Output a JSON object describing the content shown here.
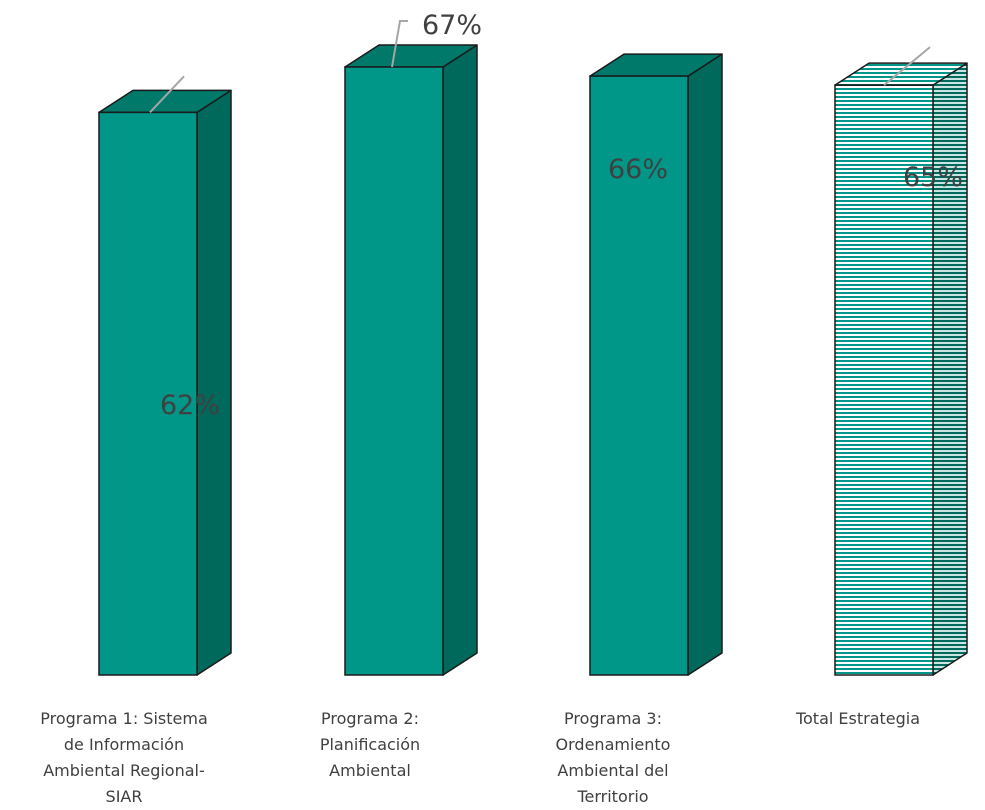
{
  "chart_data": {
    "type": "bar",
    "categories": [
      "Programa 1: Sistema de Información Ambiental Regional-SIAR",
      "Programa 2: Planificación Ambiental",
      "Programa 3: Ordenamiento Ambiental del Territorio",
      "Total Estrategia"
    ],
    "category_lines": [
      [
        "Programa 1: Sistema",
        "de Información",
        "Ambiental Regional-",
        "SIAR"
      ],
      [
        "Programa 2:",
        "Planificación",
        "Ambiental"
      ],
      [
        "Programa 3:",
        "Ordenamiento",
        "Ambiental del",
        "Territorio"
      ],
      [
        "Total Estrategia"
      ]
    ],
    "values": [
      62,
      67,
      66,
      65
    ],
    "data_labels": [
      "62%",
      "67%",
      "66%",
      "65%"
    ],
    "ylim": [
      0,
      68
    ],
    "grid": false,
    "legend": "none",
    "style": "3d-column",
    "colors": {
      "front": "#009688",
      "side": "#00695C",
      "top": "#00796B",
      "outline": "#1a1a1a",
      "hatch_line": "#7fbdb2",
      "label_text": "#404040",
      "leader_line": "#a6a6a6"
    },
    "patterns": [
      "solid",
      "solid",
      "solid",
      "horizontal-stripes"
    ]
  }
}
